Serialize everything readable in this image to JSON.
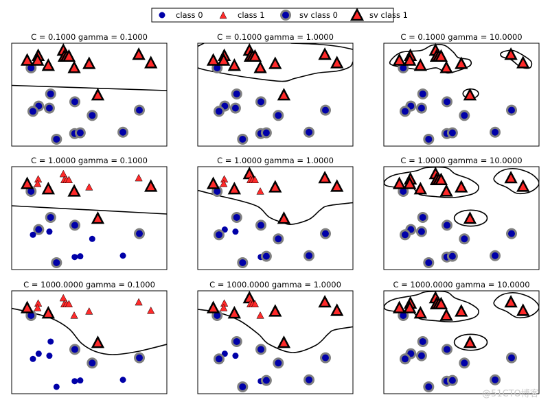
{
  "chart_data": {
    "type": "scatter",
    "legend": {
      "placement": "top-center",
      "entries": [
        "class 0",
        "class 1",
        "sv class 0",
        "sv class 1"
      ]
    },
    "colors": {
      "class0": "#0000a8",
      "class1": "#ff2a2a",
      "sv0_edge": "#808080",
      "sv1_edge": "#000000",
      "boundary": "#000000"
    },
    "grid": false,
    "axes_visible": false,
    "xlim": [
      0,
      10
    ],
    "ylim": [
      0,
      10
    ],
    "points": {
      "class0": [
        [
          1.25,
          7.6
        ],
        [
          2.51,
          5.07
        ],
        [
          4.07,
          4.31
        ],
        [
          1.74,
          3.89
        ],
        [
          1.37,
          3.38
        ],
        [
          2.43,
          3.69
        ],
        [
          5.19,
          2.98
        ],
        [
          8.23,
          3.49
        ],
        [
          4.06,
          1.22
        ],
        [
          4.42,
          1.29
        ],
        [
          7.17,
          1.35
        ],
        [
          2.89,
          0.67
        ]
      ],
      "class1": [
        [
          1.0,
          8.33
        ],
        [
          1.71,
          8.78
        ],
        [
          1.67,
          8.33
        ],
        [
          2.36,
          7.82
        ],
        [
          3.33,
          9.29
        ],
        [
          3.39,
          8.71
        ],
        [
          3.54,
          8.71
        ],
        [
          3.69,
          8.71
        ],
        [
          4.03,
          7.6
        ],
        [
          4.99,
          8.0
        ],
        [
          8.19,
          8.89
        ],
        [
          8.97,
          8.07
        ],
        [
          5.55,
          4.95
        ]
      ]
    },
    "panels": [
      {
        "title": "C = 0.1000 gamma = 0.1000",
        "C": 0.1,
        "gamma": 0.1,
        "sv0": [
          0,
          1,
          2,
          3,
          4,
          5,
          6,
          7,
          8,
          9,
          10,
          11
        ],
        "sv1": [
          0,
          1,
          2,
          3,
          4,
          5,
          6,
          7,
          8,
          9,
          10,
          11,
          12
        ],
        "boundary": {
          "lines": [
            [
              [
                0,
                5.9
              ],
              [
                10,
                5.4
              ]
            ]
          ],
          "closed": [],
          "ellipses": []
        }
      },
      {
        "title": "C = 0.1000 gamma = 1.0000",
        "C": 0.1,
        "gamma": 1.0,
        "sv0": [
          0,
          1,
          2,
          3,
          4,
          5,
          6,
          7,
          8,
          9,
          10,
          11
        ],
        "sv1": [
          0,
          1,
          2,
          3,
          4,
          5,
          6,
          7,
          8,
          9,
          10,
          11,
          12
        ],
        "boundary": {
          "lines": [
            [
              [
                0,
                7.6
              ],
              [
                0.8,
                7.3
              ],
              [
                3.1,
                6.7
              ],
              [
                5.4,
                6.3
              ],
              [
                6.3,
                6.6
              ],
              [
                7.7,
                7.1
              ],
              [
                9,
                7.3
              ],
              [
                9.8,
                7.7
              ],
              [
                10,
                8.2
              ]
            ],
            [
              [
                10,
                9.4
              ],
              [
                9,
                9.7
              ],
              [
                7.7,
                9.9
              ],
              [
                6,
                10
              ]
            ],
            [
              [
                0,
                9.7
              ],
              [
                0.4,
                10
              ]
            ]
          ],
          "closed": [],
          "ellipses": []
        }
      },
      {
        "title": "C = 0.1000 gamma = 10.0000",
        "C": 0.1,
        "gamma": 10.0,
        "sv0": [
          0,
          1,
          2,
          3,
          4,
          5,
          6,
          7,
          8,
          9,
          10,
          11
        ],
        "sv1": [
          0,
          1,
          2,
          3,
          4,
          5,
          6,
          7,
          8,
          9,
          10,
          11,
          12
        ],
        "boundary": {
          "lines": [],
          "closed": [
            [
              [
                0.4,
                8.2
              ],
              [
                1.1,
                9.1
              ],
              [
                2.4,
                9.3
              ],
              [
                3.1,
                9.8
              ],
              [
                3.9,
                9.8
              ],
              [
                4.5,
                9.1
              ],
              [
                4.8,
                8.6
              ],
              [
                5.5,
                8.4
              ],
              [
                5.6,
                7.9
              ],
              [
                5.1,
                7.5
              ],
              [
                4.1,
                7.1
              ],
              [
                3.4,
                7.6
              ],
              [
                2.6,
                7.4
              ],
              [
                1.9,
                7.5
              ],
              [
                0.7,
                7.8
              ]
            ],
            [
              [
                7.6,
                9.1
              ],
              [
                8.3,
                9.3
              ],
              [
                9.0,
                8.8
              ],
              [
                9.5,
                8.2
              ],
              [
                9.4,
                7.6
              ],
              [
                8.8,
                7.7
              ],
              [
                8.2,
                8.4
              ],
              [
                7.6,
                8.7
              ]
            ]
          ],
          "ellipses": [
            [
              5.6,
              5.1,
              0.5,
              0.45
            ]
          ]
        }
      },
      {
        "title": "C = 1.0000 gamma = 0.1000",
        "C": 1.0,
        "gamma": 0.1,
        "sv0": [
          0,
          1,
          2,
          3,
          7,
          11
        ],
        "sv1": [
          0,
          3,
          8,
          11,
          12
        ],
        "boundary": {
          "lines": [
            [
              [
                0,
                6.2
              ],
              [
                10,
                5.4
              ]
            ]
          ],
          "closed": [],
          "ellipses": []
        }
      },
      {
        "title": "C = 1.0000 gamma = 1.0000",
        "C": 1.0,
        "gamma": 1.0,
        "sv0": [
          0,
          1,
          2,
          4,
          6,
          7,
          9,
          10,
          11
        ],
        "sv1": [
          0,
          3,
          4,
          9,
          10,
          11,
          12
        ],
        "boundary": {
          "lines": [
            [
              [
                0,
                7.7
              ],
              [
                1.3,
                7.2
              ],
              [
                2.7,
                6.7
              ],
              [
                3.9,
                6.1
              ],
              [
                4.6,
                5.1
              ],
              [
                5.4,
                4.6
              ],
              [
                6.1,
                4.4
              ],
              [
                7.2,
                4.9
              ],
              [
                7.9,
                5.8
              ],
              [
                8.4,
                6.2
              ],
              [
                10,
                6.5
              ]
            ]
          ],
          "closed": [],
          "ellipses": []
        }
      },
      {
        "title": "C = 1.0000 gamma = 10.0000",
        "C": 1.0,
        "gamma": 10.0,
        "sv0": [
          0,
          1,
          2,
          3,
          4,
          5,
          6,
          7,
          8,
          9,
          10,
          11
        ],
        "sv1": [
          0,
          1,
          2,
          3,
          4,
          5,
          6,
          7,
          8,
          9,
          10,
          11,
          12
        ],
        "boundary": {
          "lines": [],
          "closed": [
            [
              [
                0.1,
                8.7
              ],
              [
                0.7,
                9.2
              ],
              [
                2.1,
                9.6
              ],
              [
                2.7,
                9.9
              ],
              [
                4.0,
                9.9
              ],
              [
                4.6,
                9.3
              ],
              [
                5.5,
                8.8
              ],
              [
                6.1,
                8.1
              ],
              [
                5.8,
                7.4
              ],
              [
                4.5,
                7.0
              ],
              [
                3.3,
                7.1
              ],
              [
                2.3,
                7.3
              ],
              [
                1.8,
                8.0
              ],
              [
                0.8,
                8.0
              ],
              [
                0.1,
                8.2
              ]
            ],
            [
              [
                7.1,
                8.9
              ],
              [
                7.6,
                9.6
              ],
              [
                8.5,
                9.8
              ],
              [
                9.5,
                9.3
              ],
              [
                10,
                8.4
              ],
              [
                9.5,
                7.6
              ],
              [
                8.6,
                7.4
              ],
              [
                7.9,
                8.0
              ],
              [
                7.3,
                8.4
              ]
            ]
          ],
          "ellipses": [
            [
              5.6,
              5.0,
              1.06,
              0.78
            ]
          ]
        }
      },
      {
        "title": "C = 1000.0000 gamma = 0.1000",
        "C": 1000.0,
        "gamma": 0.1,
        "sv0": [
          0,
          2,
          6,
          7
        ],
        "sv1": [
          0,
          3,
          12
        ],
        "boundary": {
          "lines": [
            [
              [
                0,
                8.3
              ],
              [
                1.2,
                7.9
              ],
              [
                2.6,
                7.3
              ],
              [
                3.7,
                6.3
              ],
              [
                4.5,
                4.9
              ],
              [
                5.4,
                4.1
              ],
              [
                6.5,
                3.8
              ],
              [
                8.1,
                4.1
              ],
              [
                10,
                4.8
              ]
            ]
          ],
          "closed": [],
          "ellipses": []
        }
      },
      {
        "title": "C = 1000.0000 gamma = 1.0000",
        "C": 1000.0,
        "gamma": 1.0,
        "sv0": [
          0,
          1,
          2,
          4,
          6,
          7,
          9,
          10,
          11
        ],
        "sv1": [
          0,
          3,
          4,
          9,
          10,
          11,
          12
        ],
        "boundary": {
          "lines": [
            [
              [
                0,
                8.2
              ],
              [
                1.3,
                7.9
              ],
              [
                2.7,
                7.1
              ],
              [
                3.9,
                5.8
              ],
              [
                4.6,
                4.8
              ],
              [
                6.1,
                4.0
              ],
              [
                7.6,
                4.7
              ],
              [
                8.4,
                5.8
              ],
              [
                8.8,
                6.2
              ],
              [
                10,
                6.5
              ]
            ]
          ],
          "closed": [],
          "ellipses": []
        }
      },
      {
        "title": "C = 1000.0000 gamma = 10.0000",
        "C": 1000.0,
        "gamma": 10.0,
        "sv0": [
          0,
          1,
          2,
          3,
          4,
          5,
          6,
          7,
          8,
          9,
          10,
          11
        ],
        "sv1": [
          0,
          1,
          2,
          3,
          4,
          5,
          6,
          7,
          8,
          9,
          10,
          11,
          12
        ],
        "boundary": {
          "lines": [],
          "closed": [
            [
              [
                0.1,
                8.7
              ],
              [
                0.7,
                9.2
              ],
              [
                2.1,
                9.6
              ],
              [
                2.7,
                9.9
              ],
              [
                4.0,
                9.9
              ],
              [
                4.6,
                9.3
              ],
              [
                5.5,
                8.8
              ],
              [
                6.1,
                8.1
              ],
              [
                5.8,
                7.4
              ],
              [
                4.5,
                7.0
              ],
              [
                3.3,
                7.1
              ],
              [
                2.3,
                7.3
              ],
              [
                1.8,
                8.0
              ],
              [
                0.8,
                8.0
              ],
              [
                0.1,
                8.2
              ]
            ],
            [
              [
                7.1,
                8.9
              ],
              [
                7.6,
                9.6
              ],
              [
                8.5,
                9.8
              ],
              [
                9.5,
                9.3
              ],
              [
                10,
                8.4
              ],
              [
                9.5,
                7.6
              ],
              [
                8.6,
                7.4
              ],
              [
                7.9,
                8.0
              ],
              [
                7.3,
                8.4
              ]
            ]
          ],
          "ellipses": [
            [
              5.6,
              5.0,
              1.06,
              0.78
            ]
          ]
        }
      }
    ]
  },
  "watermark": "@51CTO博客"
}
